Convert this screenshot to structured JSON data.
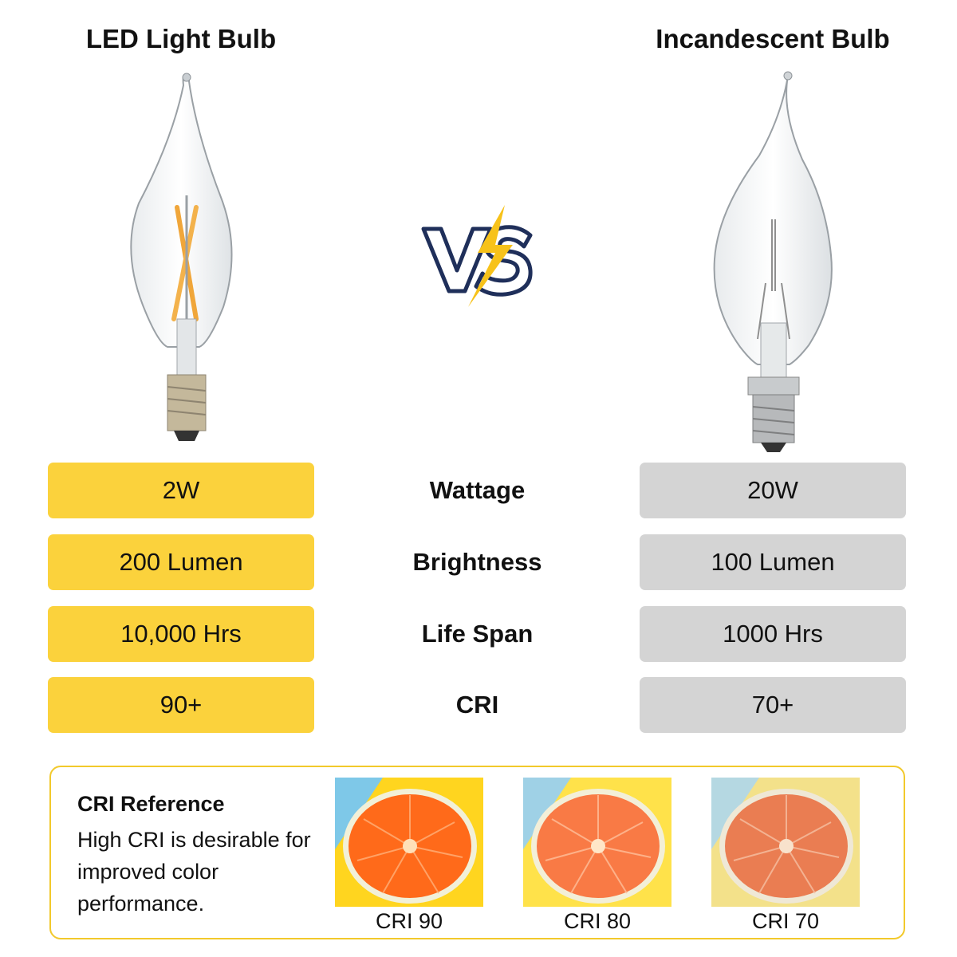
{
  "left_title": "LED Light Bulb",
  "right_title": "Incandescent Bulb",
  "vs_label": "VS",
  "rows": [
    {
      "metric": "Wattage",
      "led": "2W",
      "incandescent": "20W"
    },
    {
      "metric": "Brightness",
      "led": "200 Lumen",
      "incandescent": "100 Lumen"
    },
    {
      "metric": "Life Span",
      "led": "10,000 Hrs",
      "incandescent": "1000 Hrs"
    },
    {
      "metric": "CRI",
      "led": "90+",
      "incandescent": "70+"
    }
  ],
  "cri_reference": {
    "title": "CRI Reference",
    "description": "High CRI is desirable for improved color performance.",
    "samples": [
      {
        "label": "CRI 90",
        "bg_left": "#7ec8e8",
        "bg_right": "#ffd51f",
        "fruit": "#ff6a1a"
      },
      {
        "label": "CRI 80",
        "bg_left": "#9fd1e6",
        "bg_right": "#ffe24a",
        "fruit": "#f97a45"
      },
      {
        "label": "CRI 70",
        "bg_left": "#b5d8e2",
        "bg_right": "#f3e18a",
        "fruit": "#ea7d52"
      }
    ]
  },
  "colors": {
    "led_accent": "#fbd23c",
    "incandescent_accent": "#d4d4d4",
    "vs_outline": "#1f2f5a",
    "bolt": "#f7c21a"
  }
}
